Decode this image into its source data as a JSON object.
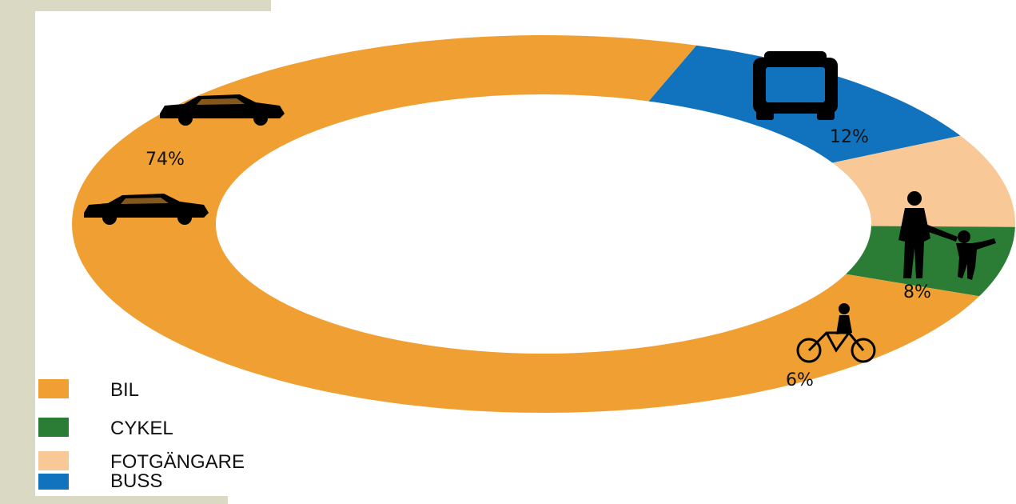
{
  "chart_data": {
    "type": "pie",
    "style": "donut",
    "categories": [
      "BIL",
      "CYKEL",
      "FOTGÄNGARE",
      "BUSS"
    ],
    "values": [
      74,
      6,
      8,
      12
    ],
    "data_labels": [
      "74%",
      "6%",
      "8%",
      "12%"
    ],
    "colors": [
      "#f0a033",
      "#2b7d35",
      "#f8c896",
      "#1173be"
    ],
    "icons": [
      "car-icon",
      "bicycle-icon",
      "pedestrian-icon",
      "bus-icon"
    ],
    "legend": {
      "placement": "bottom-left",
      "items": [
        {
          "label": "BIL",
          "color": "#f0a033"
        },
        {
          "label": "CYKEL",
          "color": "#2b7d35"
        },
        {
          "label": "FOTGÄNGARE",
          "color": "#f8c896"
        },
        {
          "label": "BUSS",
          "color": "#1173be"
        }
      ]
    },
    "title": ""
  }
}
